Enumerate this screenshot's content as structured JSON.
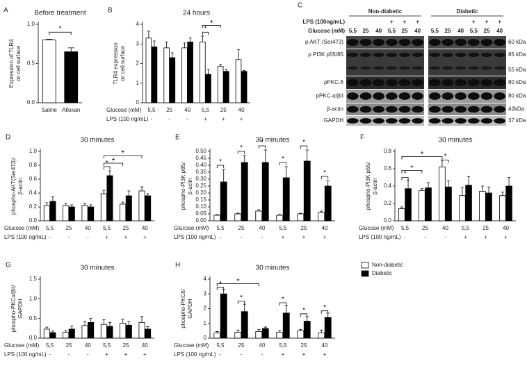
{
  "chart_data": [
    {
      "type": "bar",
      "panel": "A",
      "title": "Before treatment",
      "ylabel": [
        "Expression of TLR4",
        "on cell surface"
      ],
      "categories": [
        "Saline",
        "Alloxan"
      ],
      "values": [
        0.8,
        0.65
      ],
      "errors": [
        0.01,
        0.05
      ],
      "colors": [
        "#ffffff",
        "#000000"
      ],
      "ylim": [
        0,
        1
      ],
      "yticks": [
        {
          "value": 0,
          "label": "0.0"
        },
        0.5,
        {
          "value": 1,
          "label": "1.0"
        }
      ],
      "annotations": [
        "*"
      ]
    },
    {
      "type": "bar",
      "panel": "B",
      "title": "24 hours",
      "ylabel": [
        "TLR4 expression",
        "on cell surface"
      ],
      "glucose_label": "Glucose (mM)",
      "lps_label": "LPS (100 ng/mL)",
      "categories": [
        "5,5",
        "25",
        "40",
        "5,5",
        "25",
        "40"
      ],
      "lps": [
        "-",
        "-",
        "-",
        "+",
        "+",
        "+"
      ],
      "series": [
        {
          "color": "#ffffff",
          "values": [
            3.3,
            2.8,
            2.8,
            3.1,
            1.85,
            2.2
          ],
          "errors": [
            0.35,
            0.3,
            0.25,
            0.3,
            0.1,
            0.5
          ]
        },
        {
          "color": "#000000",
          "values": [
            2.85,
            2.3,
            3.1,
            1.45,
            1.6,
            1.6
          ],
          "errors": [
            0.3,
            0.25,
            0.2,
            0.25,
            0.1,
            0.05
          ]
        }
      ],
      "ylim": [
        0,
        4
      ],
      "yticks": [
        0,
        1,
        2,
        3,
        4
      ],
      "annotations": [
        "*",
        "+"
      ]
    },
    {
      "type": "bar",
      "panel": "D",
      "title": "30 minutes",
      "ylabel": [
        "phospho-AKT(Ser473)/",
        "β-actin"
      ],
      "glucose_label": "Glucose (mM)",
      "lps_label": "LPS (100 ng/mL)",
      "categories": [
        "5,5",
        "25",
        "40",
        "5,5",
        "25",
        "40"
      ],
      "lps": [
        "-",
        "-",
        "-",
        "+",
        "+",
        "+"
      ],
      "series": [
        {
          "color": "#ffffff",
          "values": [
            0.22,
            0.22,
            0.22,
            0.39,
            0.24,
            0.43
          ],
          "errors": [
            0.04,
            0.03,
            0.03,
            0.05,
            0.03,
            0.06
          ]
        },
        {
          "color": "#000000",
          "values": [
            0.28,
            0.2,
            0.2,
            0.65,
            0.36,
            0.36
          ],
          "errors": [
            0.07,
            0.03,
            0.03,
            0.07,
            0.07,
            0.03
          ]
        }
      ],
      "ylim": [
        0,
        1
      ],
      "yticks": [
        {
          "value": 0,
          "label": "0.0"
        },
        0.2,
        0.4,
        0.6,
        0.8,
        {
          "value": 1,
          "label": "1.0"
        }
      ],
      "annotations": [
        "*",
        "+",
        "+"
      ]
    },
    {
      "type": "bar",
      "panel": "E",
      "title": "30 minutes",
      "ylabel": [
        "phospho-PI3K p85/",
        "β-actin"
      ],
      "glucose_label": "Glucose (mM)",
      "lps_label": "LPS (100 ng/mL)",
      "categories": [
        "5,5",
        "25",
        "40",
        "5,5",
        "25",
        "40"
      ],
      "lps": [
        "-",
        "-",
        "-",
        "+",
        "+",
        "+"
      ],
      "series": [
        {
          "color": "#ffffff",
          "values": [
            0.04,
            0.05,
            0.07,
            0.04,
            0.05,
            0.06
          ],
          "errors": [
            0.005,
            0.005,
            0.01,
            0.005,
            0.005,
            0.01
          ]
        },
        {
          "color": "#000000",
          "values": [
            0.28,
            0.42,
            0.42,
            0.31,
            0.43,
            0.25
          ],
          "errors": [
            0.09,
            0.05,
            0.09,
            0.08,
            0.08,
            0.04
          ]
        }
      ],
      "ylim": [
        0,
        0.5
      ],
      "yticks": [
        {
          "value": 0,
          "label": "0.00"
        },
        0.05,
        {
          "value": 0.1,
          "label": "0.10"
        },
        0.15,
        {
          "value": 0.2,
          "label": "0.20"
        },
        0.25,
        {
          "value": 0.3,
          "label": "0.30"
        },
        0.35,
        {
          "value": 0.4,
          "label": "0.40"
        },
        0.45,
        {
          "value": 0.5,
          "label": "0.50"
        }
      ],
      "annotations": [
        "*",
        "*",
        "*",
        "*",
        "*",
        "*"
      ]
    },
    {
      "type": "bar",
      "panel": "F",
      "title": "30 minutes",
      "ylabel": [
        "phospho-PI3K p55/",
        "β-actin"
      ],
      "glucose_label": "Glucose (mM)",
      "lps_label": "LPS (100 ng/mL)",
      "categories": [
        "5,5",
        "25",
        "40",
        "5,5",
        "25",
        "40"
      ],
      "lps": [
        "-",
        "-",
        "-",
        "+",
        "+",
        "+"
      ],
      "series": [
        {
          "color": "#ffffff",
          "values": [
            0.14,
            0.35,
            0.62,
            0.29,
            0.34,
            0.29
          ],
          "errors": [
            0.02,
            0.02,
            0.08,
            0.09,
            0.06,
            0.04
          ]
        },
        {
          "color": "#000000",
          "values": [
            0.37,
            0.38,
            0.39,
            0.41,
            0.32,
            0.4
          ],
          "errors": [
            0.1,
            0.06,
            0.07,
            0.1,
            0.07,
            0.1
          ]
        }
      ],
      "ylim": [
        0,
        0.8
      ],
      "yticks": [
        {
          "value": 0,
          "label": "0.0"
        },
        0.2,
        0.4,
        0.6,
        0.8
      ],
      "annotations": [
        "+",
        "+",
        "*",
        "*"
      ]
    },
    {
      "type": "bar",
      "panel": "G",
      "title": "30 minutes",
      "ylabel": [
        "phospho-PKCα/βII/",
        "GAPDH"
      ],
      "glucose_label": "Glucose (mM)",
      "lps_label": "LPS (100 ng/mL)",
      "categories": [
        "5,5",
        "25",
        "40",
        "5,5",
        "25",
        "40"
      ],
      "lps": [
        "-",
        "-",
        "-",
        "+",
        "+",
        "+"
      ],
      "series": [
        {
          "color": "#ffffff",
          "values": [
            0.23,
            0.15,
            0.32,
            0.35,
            0.38,
            0.4
          ],
          "errors": [
            0.05,
            0.04,
            0.1,
            0.12,
            0.1,
            0.15
          ]
        },
        {
          "color": "#000000",
          "values": [
            0.14,
            0.23,
            0.4,
            0.3,
            0.33,
            0.23
          ],
          "errors": [
            0.04,
            0.08,
            0.1,
            0.1,
            0.1,
            0.06
          ]
        }
      ],
      "ylim": [
        0,
        1.5
      ],
      "yticks": [
        {
          "value": 0,
          "label": "0.0"
        },
        0.5,
        {
          "value": 1,
          "label": "1.0"
        },
        1.5
      ],
      "annotations": []
    },
    {
      "type": "bar",
      "panel": "H",
      "title": "30 minutes",
      "ylabel": [
        "phospho-PKCδ/",
        "GAPDH"
      ],
      "glucose_label": "Glucose (mM)",
      "lps_label": "LPS (100 ng/mL)",
      "categories": [
        "5,5",
        "25",
        "40",
        "5,5",
        "25",
        "40"
      ],
      "lps": [
        "-",
        "-",
        "-",
        "+",
        "+",
        "+"
      ],
      "series": [
        {
          "name": "Non-diabetic",
          "color": "#ffffff",
          "values": [
            0.35,
            0.4,
            0.45,
            0.4,
            0.5,
            0.35
          ],
          "errors": [
            0.1,
            0.15,
            0.15,
            0.1,
            0.1,
            0.2
          ]
        },
        {
          "name": "Diabetic",
          "color": "#000000",
          "values": [
            3.0,
            1.8,
            0.65,
            1.7,
            1.15,
            1.4
          ],
          "errors": [
            0.3,
            0.5,
            0.1,
            0.5,
            0.3,
            0.3
          ]
        }
      ],
      "ylim": [
        0,
        4
      ],
      "yticks": [
        0,
        1,
        2,
        3,
        4
      ],
      "legend": "top-right",
      "annotations": [
        "*",
        "+",
        "*",
        "*",
        "*",
        "*"
      ]
    }
  ],
  "blot": {
    "panel": "C",
    "lps_label": "LPS (100ng/mL)",
    "glucose_label": "Glucose (mM)",
    "groups": [
      "Non-diabetic",
      "Diabetic"
    ],
    "glucose": [
      "5,5",
      "25",
      "40",
      "5,5",
      "25",
      "40"
    ],
    "lps": [
      null,
      null,
      null,
      "+",
      "+",
      "+"
    ],
    "rows": [
      {
        "label": "p AKT (Ser473)",
        "kda": [
          "60 kDa"
        ]
      },
      {
        "label": "p PI3K p55/85",
        "kda": [
          "85 kDa",
          "55 kDa"
        ]
      },
      {
        "label": "pPKC-δ",
        "kda": [
          "80 kDa"
        ]
      },
      {
        "label": "pPKC-α/βII",
        "kda": [
          "80 kDa"
        ]
      },
      {
        "label": "β-actin",
        "kda": [
          "42kDa"
        ]
      },
      {
        "label": "GAPDH",
        "kda": [
          "37 kDa"
        ]
      }
    ]
  }
}
